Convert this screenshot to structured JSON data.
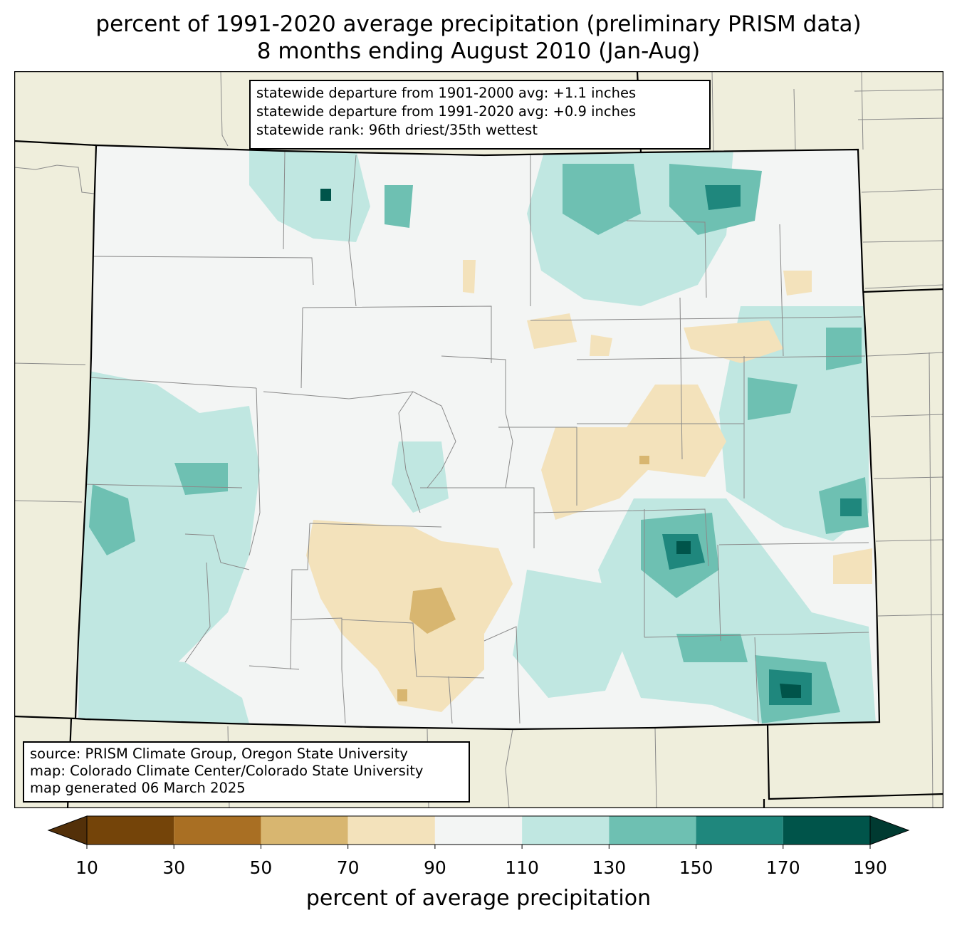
{
  "title_line1": "percent of 1991-2020 average precipitation (preliminary PRISM data)",
  "title_line2": "8 months ending August 2010 (Jan-Aug)",
  "stats": {
    "line1": "statewide departure from 1901-2000 avg: +1.1 inches",
    "line2": "statewide departure from 1991-2020 avg: +0.9 inches",
    "line3": "statewide rank: 96th driest/35th wettest"
  },
  "source": {
    "line1": "source: PRISM Climate Group, Oregon State University",
    "line2": "map: Colorado Climate Center/Colorado State University",
    "line3": "map generated 06 March 2025"
  },
  "colorbar": {
    "label": "percent of average precipitation",
    "ticks": [
      "10",
      "30",
      "50",
      "70",
      "90",
      "110",
      "130",
      "150",
      "170",
      "190"
    ],
    "bins": [
      {
        "from": 10,
        "to": 30,
        "color": "#744409"
      },
      {
        "from": 30,
        "to": 50,
        "color": "#a96f23"
      },
      {
        "from": 50,
        "to": 70,
        "color": "#d8b670"
      },
      {
        "from": 70,
        "to": 90,
        "color": "#f3e2bb"
      },
      {
        "from": 90,
        "to": 110,
        "color": "#f3f5f4"
      },
      {
        "from": 110,
        "to": 130,
        "color": "#c0e7e1"
      },
      {
        "from": 130,
        "to": 150,
        "color": "#6ec0b2"
      },
      {
        "from": 150,
        "to": 170,
        "color": "#1f877d"
      },
      {
        "from": 170,
        "to": 190,
        "color": "#00544a"
      }
    ],
    "under_color": "#533009",
    "over_color": "#003a31"
  },
  "map_colors": {
    "outside": "#efeedc",
    "state_border": "#000000",
    "county_line": "#8a8a8a"
  }
}
